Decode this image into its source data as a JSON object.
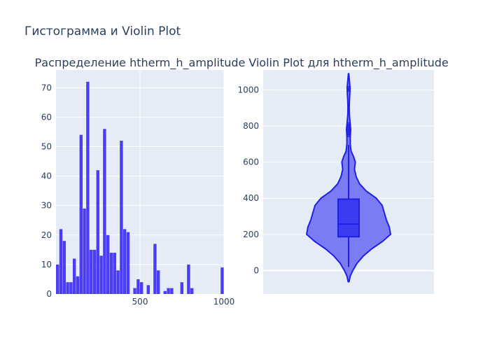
{
  "figure": {
    "title": "Гистограмма и Violin Plot"
  },
  "colors": {
    "plot_bg": "#E5ECF6",
    "grid": "#ffffff",
    "bar": "#4A3DF5",
    "violin_fill": "#7B7BF3",
    "violin_line": "#1F1FE6",
    "box_fill": "#3B3BF2",
    "text": "#2a3f5f"
  },
  "chart_data": [
    {
      "type": "bar",
      "title": "Распределение htherm_h_amplitude",
      "xlabel": "",
      "ylabel": "",
      "xlim": [
        0,
        1000
      ],
      "ylim": [
        0,
        76
      ],
      "x_ticks": [
        500,
        1000
      ],
      "y_ticks": [
        0,
        10,
        20,
        30,
        40,
        50,
        60,
        70
      ],
      "bin_width": 20,
      "bins_x0": [
        0,
        20,
        40,
        60,
        80,
        100,
        120,
        140,
        160,
        180,
        200,
        220,
        240,
        260,
        280,
        300,
        320,
        340,
        360,
        380,
        400,
        420,
        440,
        460,
        480,
        500,
        520,
        540,
        560,
        580,
        600,
        620,
        640,
        660,
        680,
        700,
        720,
        740,
        760,
        780,
        800,
        820,
        840,
        860,
        880,
        900,
        920,
        940,
        960,
        980
      ],
      "values": [
        10,
        22,
        18,
        4,
        4,
        12,
        6,
        54,
        29,
        72,
        15,
        15,
        42,
        13,
        56,
        20,
        14,
        14,
        8,
        52,
        22,
        21,
        0,
        2,
        5,
        4,
        0,
        3,
        0,
        17,
        8,
        0,
        1,
        2,
        2,
        0,
        0,
        4,
        0,
        10,
        2,
        0,
        0,
        0,
        0,
        0,
        0,
        0,
        0,
        9
      ],
      "grid": true,
      "legend": "none"
    },
    {
      "type": "violin",
      "title": "Violin Plot для htherm_h_amplitude",
      "xlabel": "",
      "ylabel": "",
      "ylim": [
        -130,
        1110
      ],
      "y_ticks": [
        0,
        200,
        400,
        600,
        800,
        1000
      ],
      "box": {
        "q1": 187,
        "median": 257,
        "q3": 395,
        "whisker_low": 20,
        "whisker_high": 695
      },
      "outliers": [
        750,
        760,
        770,
        780,
        790,
        800,
        810,
        1000,
        1010
      ],
      "kde_profile": [
        [
          -62,
          0.01
        ],
        [
          -30,
          0.04
        ],
        [
          0,
          0.1
        ],
        [
          40,
          0.2
        ],
        [
          80,
          0.35
        ],
        [
          120,
          0.55
        ],
        [
          160,
          0.8
        ],
        [
          200,
          1.0
        ],
        [
          240,
          0.97
        ],
        [
          280,
          0.9
        ],
        [
          320,
          0.85
        ],
        [
          360,
          0.8
        ],
        [
          400,
          0.66
        ],
        [
          440,
          0.42
        ],
        [
          480,
          0.26
        ],
        [
          520,
          0.18
        ],
        [
          560,
          0.14
        ],
        [
          600,
          0.16
        ],
        [
          630,
          0.12
        ],
        [
          660,
          0.06
        ],
        [
          700,
          0.04
        ],
        [
          740,
          0.04
        ],
        [
          780,
          0.05
        ],
        [
          820,
          0.035
        ],
        [
          860,
          0.02
        ],
        [
          900,
          0.015
        ],
        [
          940,
          0.02
        ],
        [
          980,
          0.03
        ],
        [
          1010,
          0.035
        ],
        [
          1050,
          0.02
        ],
        [
          1090,
          0.005
        ]
      ],
      "grid": true,
      "legend": "none"
    }
  ]
}
